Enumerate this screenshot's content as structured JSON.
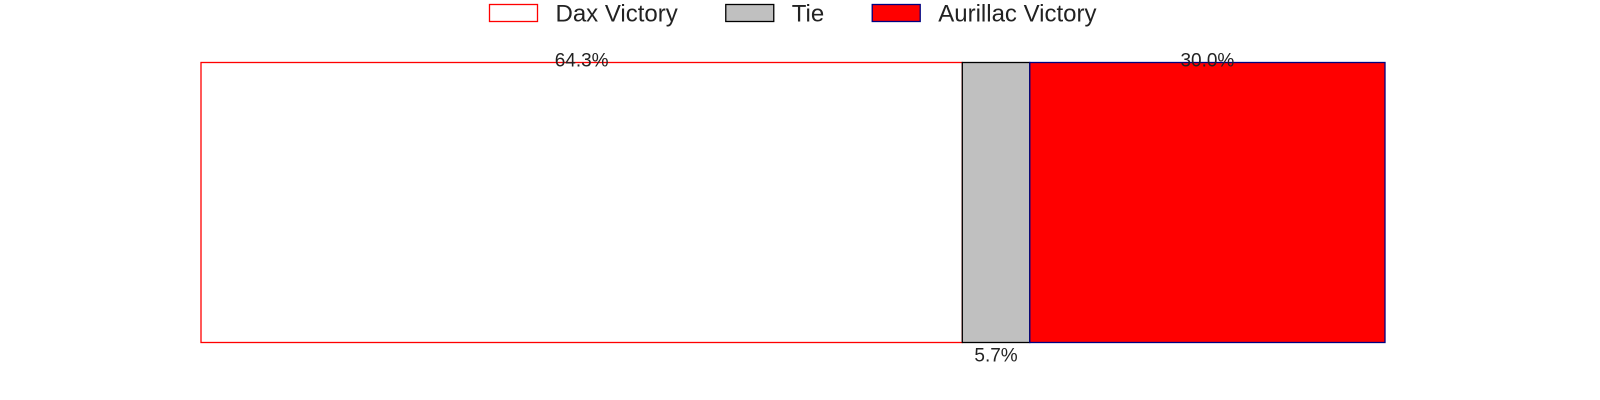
{
  "chart_data": {
    "type": "bar",
    "orientation": "horizontal",
    "stacked": true,
    "normalized_to_percent": true,
    "categories": [
      ""
    ],
    "series": [
      {
        "name": "Dax Victory",
        "values": [
          64.3
        ],
        "label": "64.3%",
        "fill": "#ffffff",
        "stroke": "#ff0000"
      },
      {
        "name": "Tie",
        "values": [
          5.7
        ],
        "label": "5.7%",
        "fill": "#c0c0c0",
        "stroke": "#000000"
      },
      {
        "name": "Aurillac Victory",
        "values": [
          30.0
        ],
        "label": "30.0%",
        "fill": "#ff0000",
        "stroke": "#000080"
      }
    ],
    "xlim": [
      0,
      100
    ],
    "axes_visible": false,
    "grid": false,
    "legend_position": "top-center",
    "label_positions": [
      "above",
      "below",
      "above"
    ]
  }
}
